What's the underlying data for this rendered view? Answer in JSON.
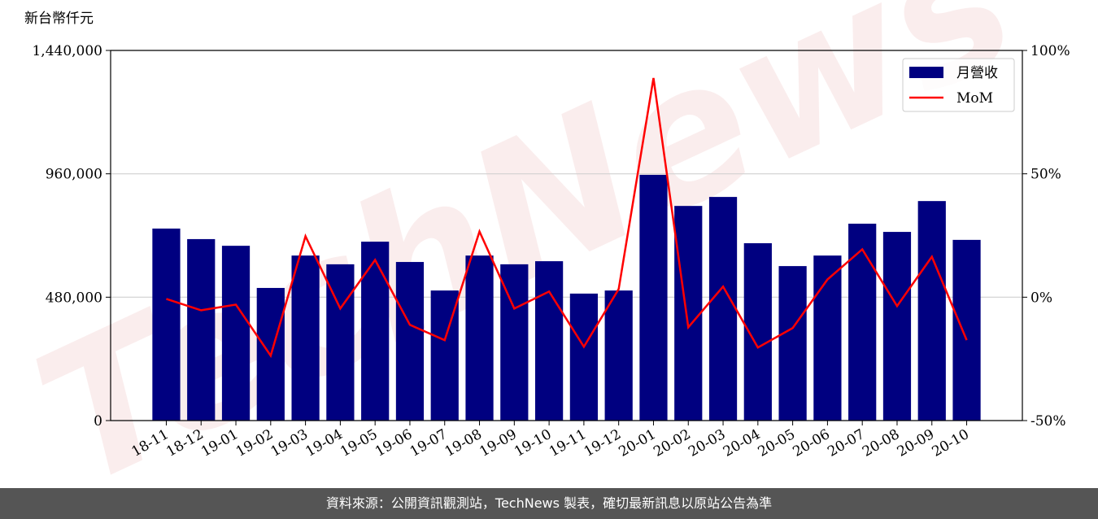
{
  "chart_data": {
    "type": "bar_line",
    "y_label": "新台幣仟元",
    "watermark": "TechNews",
    "note": "資料來源：公開資訊觀測站，TechNews 製表，確切最新訊息以原站公告為準",
    "categories": [
      "18-11",
      "18-12",
      "19-01",
      "19-02",
      "19-03",
      "19-04",
      "19-05",
      "19-06",
      "19-07",
      "19-08",
      "19-09",
      "19-10",
      "19-11",
      "19-12",
      "20-01",
      "20-02",
      "20-03",
      "20-04",
      "20-05",
      "20-06",
      "20-07",
      "20-08",
      "20-09",
      "20-10"
    ],
    "series": [
      {
        "name": "月營收",
        "type": "bar",
        "color": "#000080",
        "values": [
          747000,
          706000,
          680000,
          516000,
          642000,
          608000,
          696000,
          617000,
          506000,
          642000,
          608000,
          620000,
          494000,
          506000,
          956000,
          835000,
          870000,
          690000,
          601000,
          642000,
          766000,
          734000,
          854000,
          703000
        ]
      },
      {
        "name": "MoM",
        "type": "line",
        "axis": "y2",
        "color": "#ff0000",
        "values": [
          -0.7,
          -5.3,
          -3.0,
          -23.7,
          24.7,
          -4.6,
          15.1,
          -11.2,
          -17.4,
          26.6,
          -4.6,
          2.3,
          -20.1,
          3.3,
          88.8,
          -12.2,
          4.3,
          -20.4,
          -12.5,
          7.2,
          19.4,
          -3.6,
          16.4,
          -17.4
        ]
      }
    ],
    "ylim": [
      0,
      1440000
    ],
    "yticks": [
      0,
      {
        "value": 480000,
        "label": "480,000"
      },
      {
        "value": 960000,
        "label": "960,000"
      },
      {
        "value": 1440000,
        "label": "1,440,000"
      }
    ],
    "y2lim": [
      -50,
      100
    ],
    "y2ticks": [
      {
        "value": -50,
        "label": "-50%"
      },
      {
        "value": 0,
        "label": "0%"
      },
      {
        "value": 50,
        "label": "50%"
      },
      {
        "value": 100,
        "label": "100%"
      }
    ],
    "grid": true,
    "legend": "upper right"
  }
}
